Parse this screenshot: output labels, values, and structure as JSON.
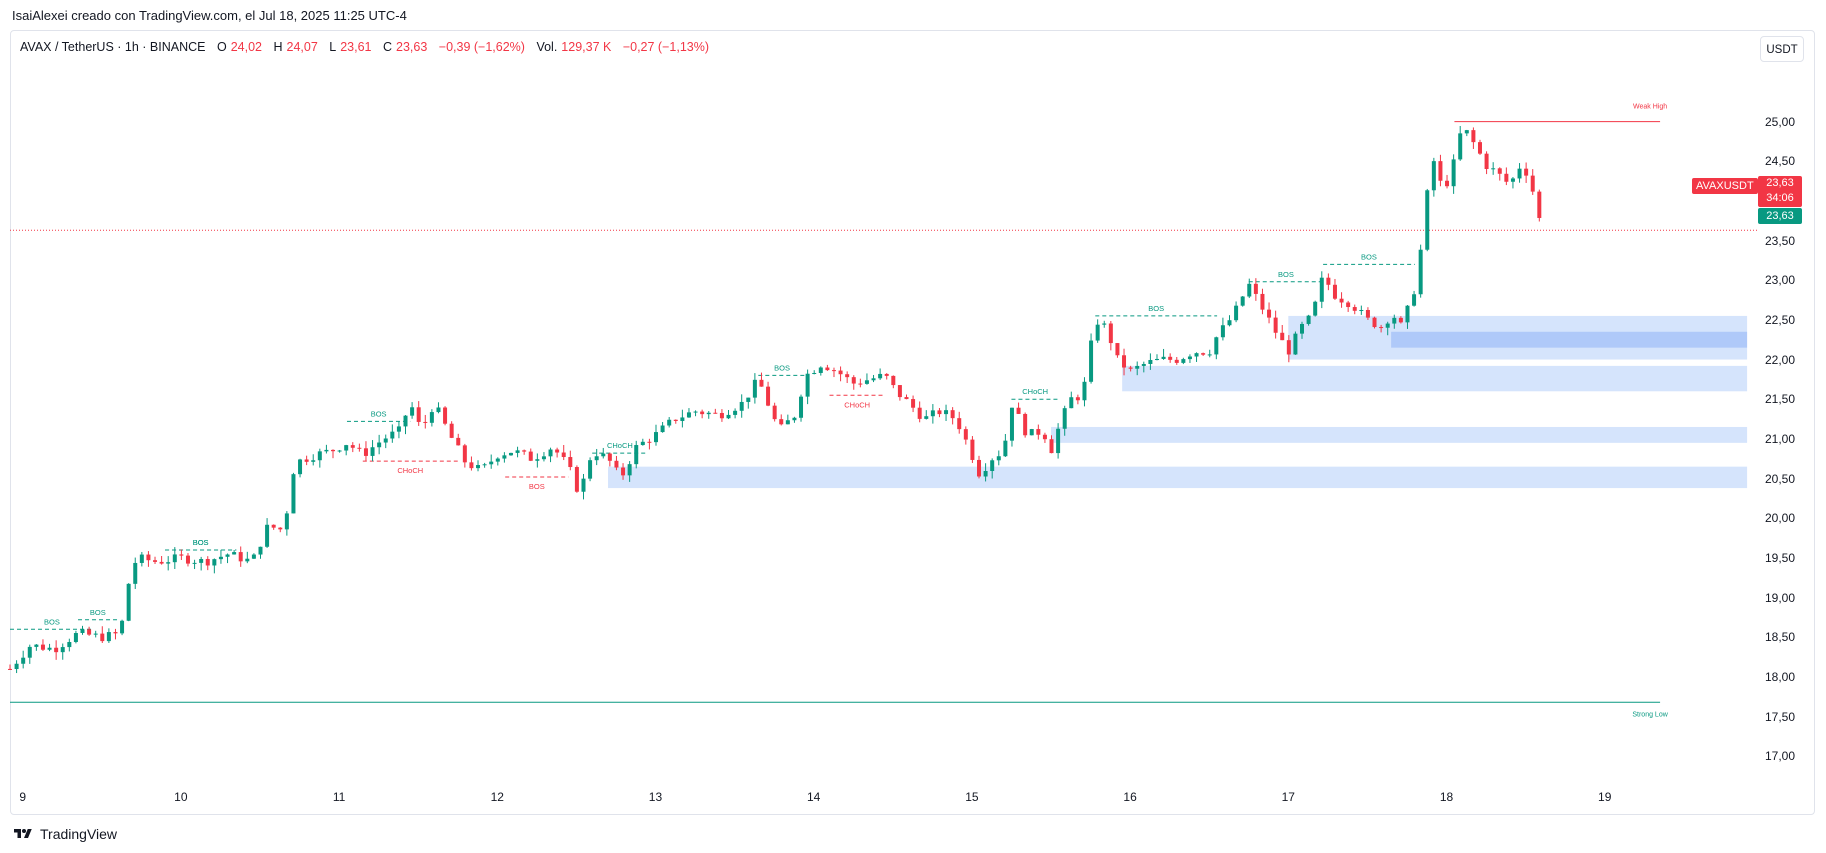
{
  "caption": "IsaiAlexei creado con TradingView.com, el Jul 18, 2025 11:25 UTC-4",
  "legend": {
    "symbol": "AVAX / TetherUS · 1h · BINANCE",
    "open_label": "O",
    "open": "24,02",
    "high_label": "H",
    "high": "24,07",
    "low_label": "L",
    "low": "23,61",
    "close_label": "C",
    "close": "23,63",
    "change": "−0,39 (−1,62%)",
    "vol_label": "Vol.",
    "vol": "129,37 K",
    "vol_change": "−0,27 (−1,13%)"
  },
  "currency_button": "USDT",
  "symbol_tag": "AVAXUSDT",
  "last_price": "23,63",
  "countdown": "34:06",
  "price_line_value": "23,63",
  "branding": "TradingView",
  "colors": {
    "up": "#089981",
    "down": "#f23645",
    "zone": "#b2cdf9",
    "zone_dark": "#8fb3f5"
  },
  "chart_data": {
    "type": "candlestick",
    "symbol": "AVAX / TetherUS",
    "interval": "1h",
    "ylim": [
      16.7,
      25.65
    ],
    "y_ticks": [
      "25,00",
      "24,50",
      "24,00",
      "23,50",
      "23,00",
      "22,50",
      "22,00",
      "21,50",
      "21,00",
      "20,50",
      "20,00",
      "19,50",
      "19,00",
      "18,50",
      "18,00",
      "17,50",
      "17,00"
    ],
    "y_tick_values": [
      25,
      24.5,
      24,
      23.5,
      23,
      22.5,
      22,
      21.5,
      21,
      20.5,
      20,
      19.5,
      19,
      18.5,
      18,
      17.5,
      17
    ],
    "x_ticks": [
      "9",
      "10",
      "11",
      "12",
      "13",
      "14",
      "15",
      "16",
      "17",
      "18",
      "19"
    ],
    "x_range_days": [
      8.92,
      19.95
    ],
    "price_path": [
      [
        8.92,
        18.1
      ],
      [
        9.05,
        18.4
      ],
      [
        9.2,
        18.35
      ],
      [
        9.35,
        18.55
      ],
      [
        9.5,
        18.5
      ],
      [
        9.62,
        18.55
      ],
      [
        9.65,
        19.05
      ],
      [
        9.72,
        19.5
      ],
      [
        9.85,
        19.45
      ],
      [
        10.0,
        19.5
      ],
      [
        10.15,
        19.45
      ],
      [
        10.3,
        19.55
      ],
      [
        10.45,
        19.45
      ],
      [
        10.55,
        19.9
      ],
      [
        10.65,
        19.85
      ],
      [
        10.72,
        20.7
      ],
      [
        10.85,
        20.8
      ],
      [
        10.95,
        20.85
      ],
      [
        11.05,
        20.95
      ],
      [
        11.15,
        20.8
      ],
      [
        11.28,
        21.0
      ],
      [
        11.38,
        21.1
      ],
      [
        11.45,
        21.45
      ],
      [
        11.52,
        21.1
      ],
      [
        11.6,
        21.45
      ],
      [
        11.7,
        21.05
      ],
      [
        11.8,
        20.7
      ],
      [
        11.9,
        20.6
      ],
      [
        12.0,
        20.8
      ],
      [
        12.1,
        20.85
      ],
      [
        12.22,
        20.75
      ],
      [
        12.35,
        20.9
      ],
      [
        12.45,
        20.65
      ],
      [
        12.52,
        20.3
      ],
      [
        12.6,
        20.85
      ],
      [
        12.7,
        20.75
      ],
      [
        12.78,
        20.5
      ],
      [
        12.88,
        20.9
      ],
      [
        13.0,
        21.05
      ],
      [
        13.12,
        21.25
      ],
      [
        13.25,
        21.35
      ],
      [
        13.4,
        21.3
      ],
      [
        13.55,
        21.45
      ],
      [
        13.65,
        21.75
      ],
      [
        13.72,
        21.4
      ],
      [
        13.78,
        21.1
      ],
      [
        13.88,
        21.3
      ],
      [
        13.95,
        21.8
      ],
      [
        14.05,
        21.95
      ],
      [
        14.15,
        21.85
      ],
      [
        14.25,
        21.7
      ],
      [
        14.35,
        21.75
      ],
      [
        14.45,
        21.8
      ],
      [
        14.52,
        21.6
      ],
      [
        14.6,
        21.45
      ],
      [
        14.7,
        21.25
      ],
      [
        14.8,
        21.35
      ],
      [
        14.9,
        21.25
      ],
      [
        14.98,
        20.9
      ],
      [
        15.05,
        20.55
      ],
      [
        15.12,
        20.75
      ],
      [
        15.2,
        20.85
      ],
      [
        15.25,
        21.45
      ],
      [
        15.35,
        21.05
      ],
      [
        15.45,
        21.1
      ],
      [
        15.5,
        20.85
      ],
      [
        15.55,
        21.15
      ],
      [
        15.62,
        21.5
      ],
      [
        15.7,
        21.55
      ],
      [
        15.78,
        22.5
      ],
      [
        15.85,
        22.4
      ],
      [
        15.92,
        22.0
      ],
      [
        16.0,
        21.85
      ],
      [
        16.1,
        21.95
      ],
      [
        16.2,
        22.0
      ],
      [
        16.3,
        22.0
      ],
      [
        16.4,
        22.1
      ],
      [
        16.5,
        22.1
      ],
      [
        16.55,
        22.3
      ],
      [
        16.65,
        22.55
      ],
      [
        16.75,
        22.95
      ],
      [
        16.85,
        22.6
      ],
      [
        16.92,
        22.35
      ],
      [
        17.0,
        22.1
      ],
      [
        17.08,
        22.4
      ],
      [
        17.15,
        22.55
      ],
      [
        17.22,
        23.05
      ],
      [
        17.3,
        22.8
      ],
      [
        17.4,
        22.7
      ],
      [
        17.5,
        22.5
      ],
      [
        17.6,
        22.4
      ],
      [
        17.65,
        22.6
      ],
      [
        17.72,
        22.4
      ],
      [
        17.78,
        22.8
      ],
      [
        17.82,
        23.0
      ],
      [
        17.86,
        23.9
      ],
      [
        17.92,
        24.5
      ],
      [
        17.98,
        24.1
      ],
      [
        18.05,
        24.5
      ],
      [
        18.1,
        24.95
      ],
      [
        18.18,
        24.7
      ],
      [
        18.25,
        24.45
      ],
      [
        18.32,
        24.35
      ],
      [
        18.4,
        24.2
      ],
      [
        18.48,
        24.5
      ],
      [
        18.55,
        24.1
      ],
      [
        18.6,
        23.65
      ]
    ],
    "market_structure": [
      {
        "label": "BOS",
        "type": "bullish",
        "level": 18.6,
        "x_start": 8.92,
        "x_end": 9.45
      },
      {
        "label": "BOS",
        "type": "bullish",
        "level": 18.72,
        "x_start": 9.35,
        "x_end": 9.6
      },
      {
        "label": "BOS",
        "type": "bullish",
        "level": 19.6,
        "x_start": 9.9,
        "x_end": 10.35
      },
      {
        "label": "BOS",
        "type": "bullish",
        "level": 19.6,
        "x_start": 9.9,
        "x_end": 10.35
      },
      {
        "label": "BOS",
        "type": "bullish",
        "level": 21.22,
        "x_start": 11.05,
        "x_end": 11.45
      },
      {
        "label": "CHoCH",
        "type": "bearish",
        "level": 20.72,
        "x_start": 11.15,
        "x_end": 11.75
      },
      {
        "label": "BOS",
        "type": "bearish",
        "level": 20.52,
        "x_start": 12.05,
        "x_end": 12.45
      },
      {
        "label": "CHoCH",
        "type": "bullish",
        "level": 20.82,
        "x_start": 12.6,
        "x_end": 12.95
      },
      {
        "label": "BOS",
        "type": "bullish",
        "level": 21.8,
        "x_start": 13.65,
        "x_end": 13.95
      },
      {
        "label": "CHoCH",
        "type": "bearish",
        "level": 21.55,
        "x_start": 14.1,
        "x_end": 14.45
      },
      {
        "label": "CHoCH",
        "type": "bullish",
        "level": 21.5,
        "x_start": 15.25,
        "x_end": 15.55
      },
      {
        "label": "BOS",
        "type": "bullish",
        "level": 22.55,
        "x_start": 15.78,
        "x_end": 16.55
      },
      {
        "label": "BOS",
        "type": "bullish",
        "level": 22.98,
        "x_start": 16.75,
        "x_end": 17.22
      },
      {
        "label": "BOS",
        "type": "bullish",
        "level": 23.2,
        "x_start": 17.22,
        "x_end": 17.8
      }
    ],
    "zones": [
      {
        "low": 22.0,
        "high": 22.55,
        "x_start": 17.0,
        "x_end": 19.9
      },
      {
        "low": 22.15,
        "high": 22.35,
        "x_start": 17.65,
        "x_end": 19.9
      },
      {
        "low": 21.6,
        "high": 21.92,
        "x_start": 15.95,
        "x_end": 19.9
      },
      {
        "low": 20.95,
        "high": 21.15,
        "x_start": 15.5,
        "x_end": 19.9
      },
      {
        "low": 20.38,
        "high": 20.65,
        "x_start": 12.7,
        "x_end": 19.9
      }
    ],
    "weak_high": {
      "label": "Weak High",
      "level": 25.0,
      "x_start": 18.05,
      "x_end": 19.35
    },
    "strong_low": {
      "label": "Strong Low",
      "level": 17.68,
      "x_start": 8.92,
      "x_end": 19.35
    },
    "last_price": 23.63
  }
}
